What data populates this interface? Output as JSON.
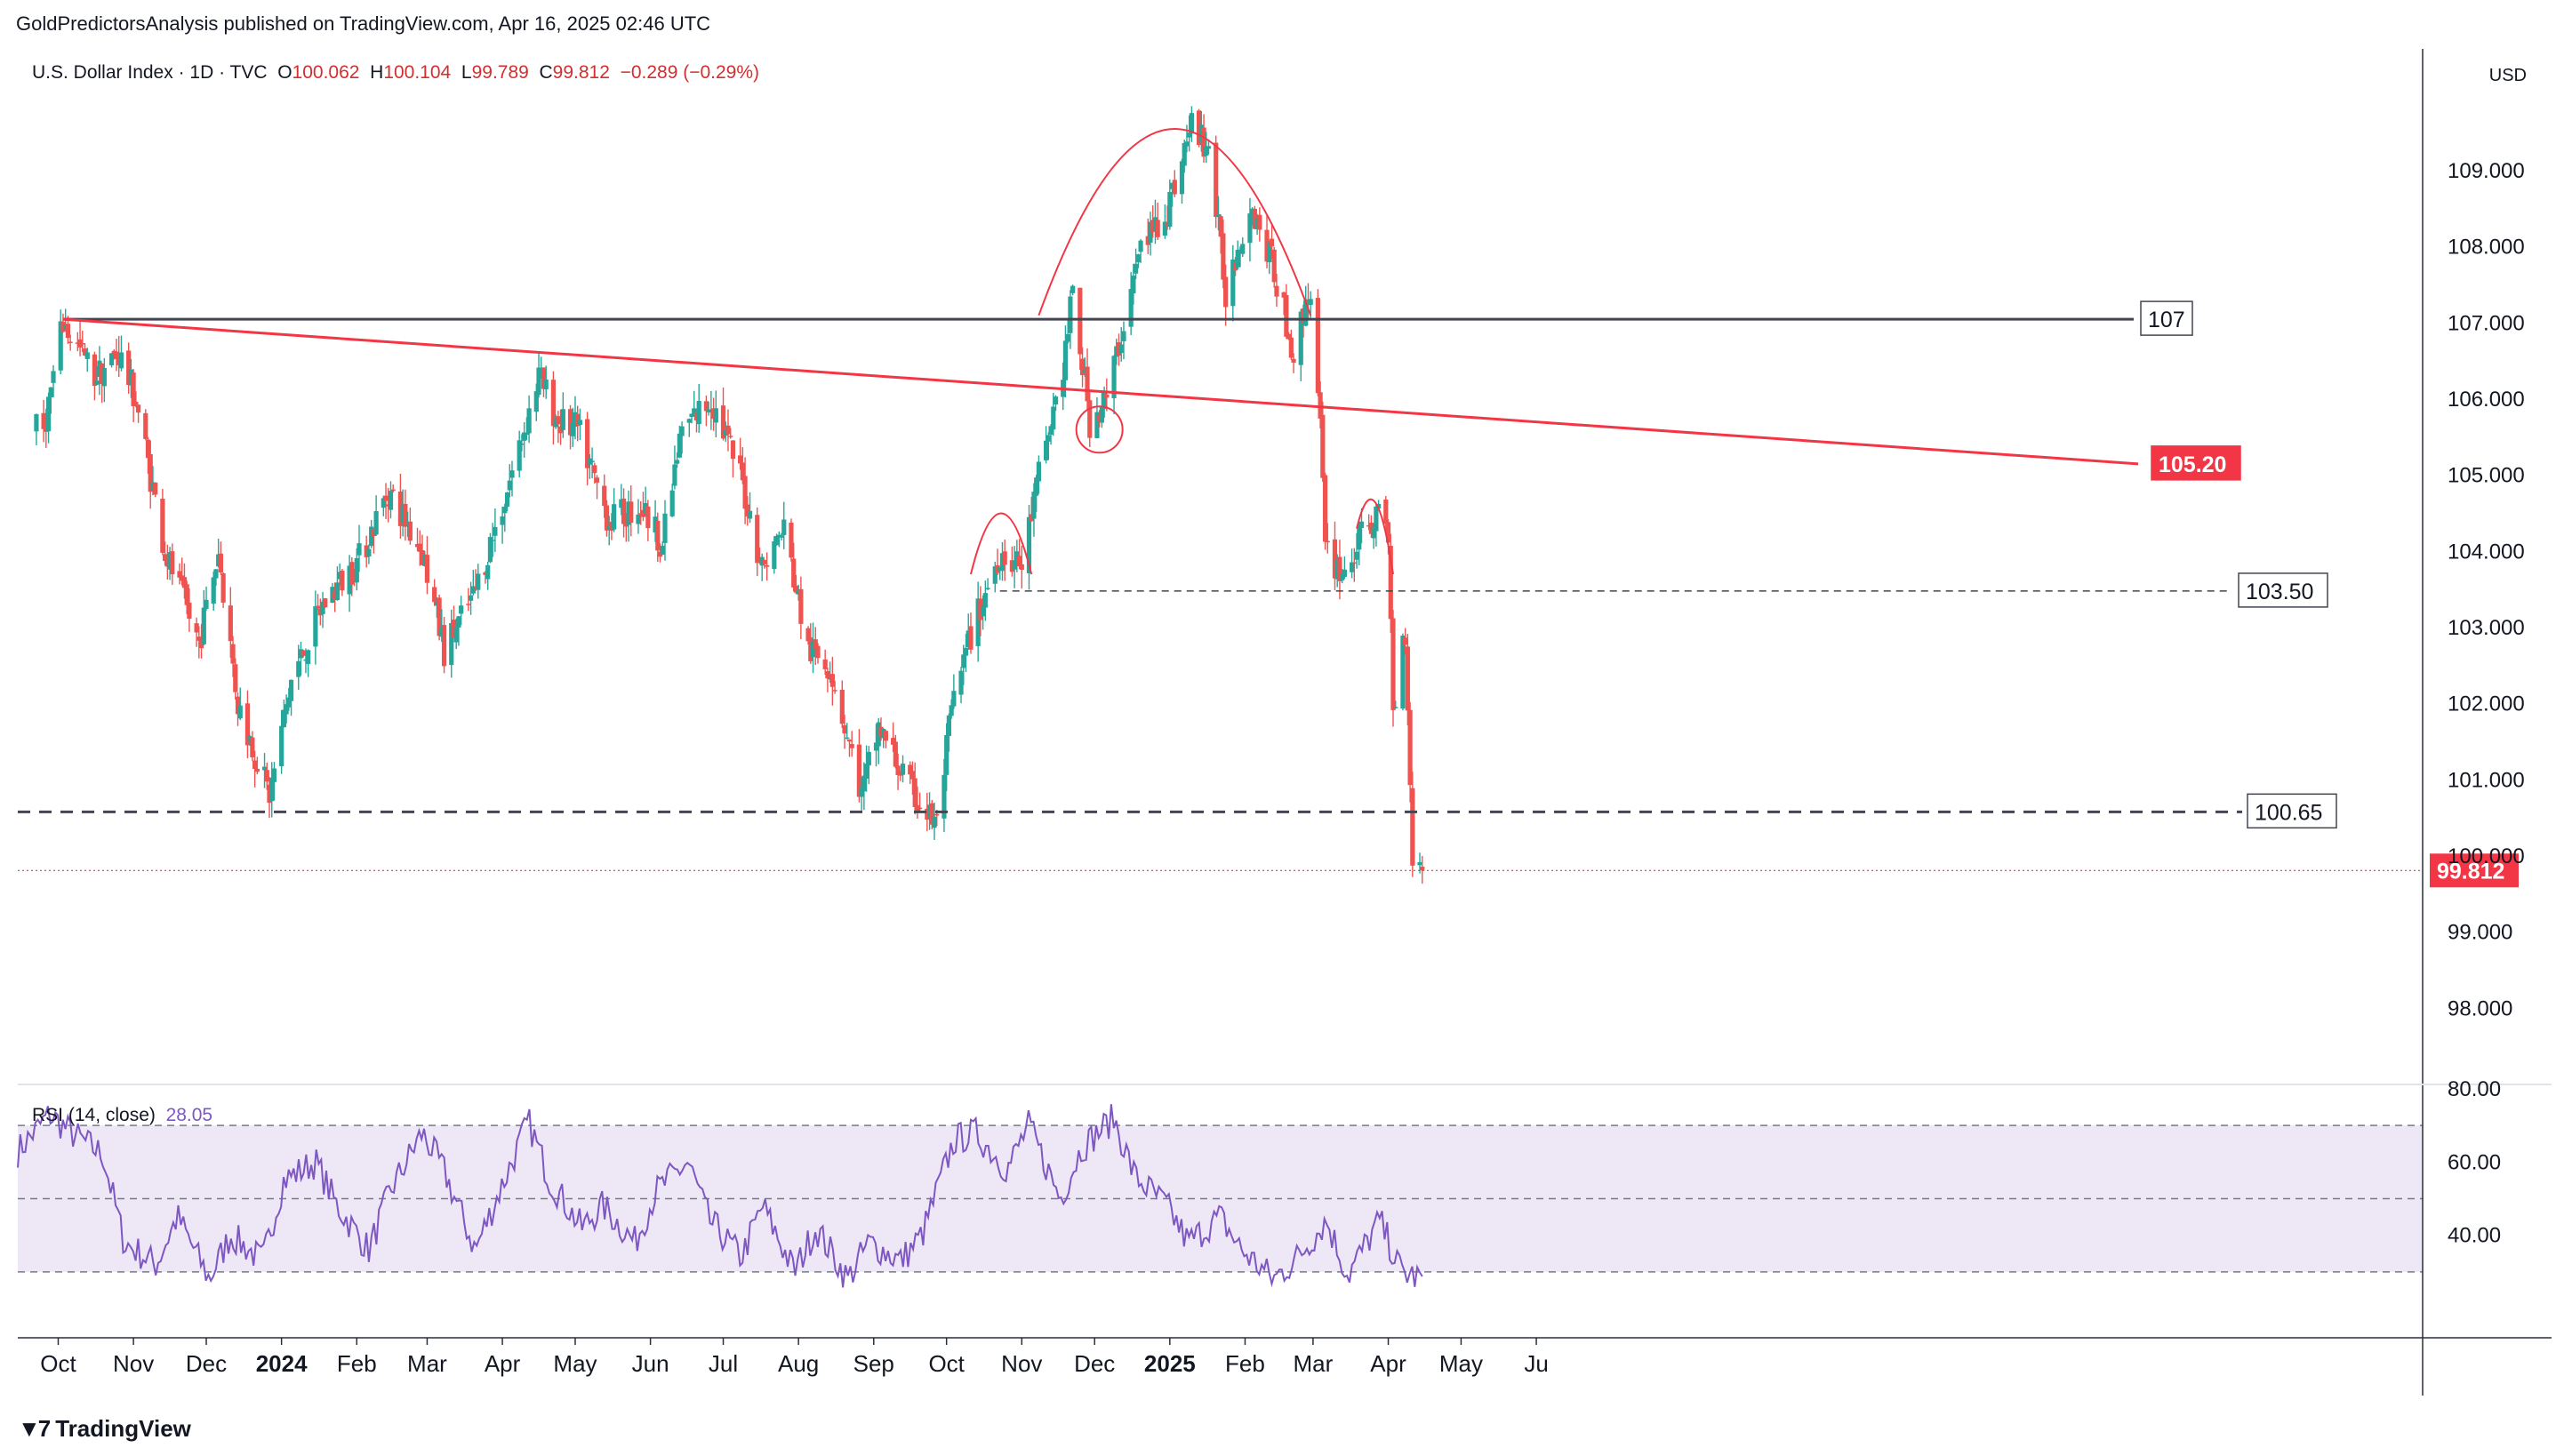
{
  "header": {
    "published": "GoldPredictorsAnalysis published on TradingView.com, Apr 16, 2025 02:46 UTC"
  },
  "symbol": {
    "title": "U.S. Dollar Index · 1D · TVC",
    "open_label": "O",
    "open": "100.062",
    "high_label": "H",
    "high": "100.104",
    "low_label": "L",
    "low": "99.789",
    "close_label": "C",
    "close": "99.812",
    "change": "−0.289 (−0.29%)"
  },
  "currency": "USD",
  "rsi": {
    "label": "RSI (14, close)",
    "value": "28.05"
  },
  "brand": "TradingView",
  "colors": {
    "up": "#26a69a",
    "down": "#ef5350",
    "trend": "#f23645",
    "level": "#434651",
    "rsi": "#7e57c2",
    "rsi_band": "#ede7f6"
  },
  "chart_data": [
    {
      "type": "candlestick",
      "x_labels": [
        "Oct",
        "Nov",
        "Dec",
        "2024",
        "Feb",
        "Mar",
        "Apr",
        "May",
        "Jun",
        "Jul",
        "Aug",
        "Sep",
        "Oct",
        "Nov",
        "Dec",
        "2025",
        "Feb",
        "Mar",
        "Apr",
        "May",
        "Ju"
      ],
      "y_ticks": [
        "109.000",
        "108.000",
        "107.000",
        "106.000",
        "105.000",
        "104.000",
        "103.000",
        "102.000",
        "101.000",
        "100.000",
        "99.000",
        "98.000"
      ],
      "y_range": [
        97.0,
        110.6
      ],
      "close_path": [
        [
          "2023-09-25",
          105.6
        ],
        [
          "2023-10-03",
          107.0
        ],
        [
          "2023-10-16",
          106.3
        ],
        [
          "2023-10-26",
          106.6
        ],
        [
          "2023-11-02",
          106.0
        ],
        [
          "2023-11-14",
          104.0
        ],
        [
          "2023-11-28",
          102.8
        ],
        [
          "2023-12-06",
          104.0
        ],
        [
          "2023-12-14",
          102.0
        ],
        [
          "2023-12-27",
          100.8
        ],
        [
          "2024-01-05",
          102.3
        ],
        [
          "2024-01-18",
          103.3
        ],
        [
          "2024-02-02",
          103.9
        ],
        [
          "2024-02-14",
          104.8
        ],
        [
          "2024-02-28",
          104.0
        ],
        [
          "2024-03-08",
          102.7
        ],
        [
          "2024-03-20",
          103.4
        ],
        [
          "2024-04-02",
          104.7
        ],
        [
          "2024-04-16",
          106.3
        ],
        [
          "2024-04-24",
          105.7
        ],
        [
          "2024-05-02",
          105.6
        ],
        [
          "2024-05-15",
          104.4
        ],
        [
          "2024-05-28",
          104.6
        ],
        [
          "2024-06-06",
          104.1
        ],
        [
          "2024-06-14",
          105.6
        ],
        [
          "2024-06-26",
          106.0
        ],
        [
          "2024-07-08",
          105.0
        ],
        [
          "2024-07-17",
          103.8
        ],
        [
          "2024-07-26",
          104.3
        ],
        [
          "2024-08-05",
          102.7
        ],
        [
          "2024-08-14",
          102.5
        ],
        [
          "2024-08-27",
          100.8
        ],
        [
          "2024-09-03",
          101.7
        ],
        [
          "2024-09-17",
          100.8
        ],
        [
          "2024-09-27",
          100.4
        ],
        [
          "2024-10-03",
          101.9
        ],
        [
          "2024-10-11",
          102.9
        ],
        [
          "2024-10-23",
          104.0
        ],
        [
          "2024-11-01",
          103.8
        ],
        [
          "2024-11-08",
          105.0
        ],
        [
          "2024-11-18",
          106.4
        ],
        [
          "2024-11-22",
          107.4
        ],
        [
          "2024-11-29",
          105.7
        ],
        [
          "2024-12-06",
          106.0
        ],
        [
          "2024-12-13",
          107.0
        ],
        [
          "2024-12-20",
          108.0
        ],
        [
          "2024-12-31",
          108.5
        ],
        [
          "2025-01-10",
          109.6
        ],
        [
          "2025-01-17",
          109.3
        ],
        [
          "2025-01-24",
          107.4
        ],
        [
          "2025-02-03",
          108.6
        ],
        [
          "2025-02-12",
          107.8
        ],
        [
          "2025-02-21",
          106.6
        ],
        [
          "2025-02-28",
          107.5
        ],
        [
          "2025-03-04",
          105.6
        ],
        [
          "2025-03-06",
          104.0
        ],
        [
          "2025-03-14",
          103.7
        ],
        [
          "2025-03-21",
          104.2
        ],
        [
          "2025-03-27",
          104.5
        ],
        [
          "2025-04-01",
          104.2
        ],
        [
          "2025-04-03",
          101.9
        ],
        [
          "2025-04-08",
          103.0
        ],
        [
          "2025-04-11",
          100.0
        ],
        [
          "2025-04-15",
          99.81
        ]
      ]
    },
    {
      "type": "line",
      "name": "RSI (14, close)",
      "y_ticks": [
        "80.00",
        "60.00",
        "40.00"
      ],
      "y_range": [
        20,
        80
      ],
      "bands": [
        30,
        50,
        70
      ],
      "values": [
        [
          0.0,
          63
        ],
        [
          0.03,
          73
        ],
        [
          0.05,
          68
        ],
        [
          0.08,
          62
        ],
        [
          0.1,
          38
        ],
        [
          0.13,
          32
        ],
        [
          0.15,
          45
        ],
        [
          0.18,
          28
        ],
        [
          0.2,
          40
        ],
        [
          0.23,
          33
        ],
        [
          0.25,
          55
        ],
        [
          0.28,
          60
        ],
        [
          0.3,
          48
        ],
        [
          0.33,
          36
        ],
        [
          0.35,
          52
        ],
        [
          0.38,
          68
        ],
        [
          0.4,
          58
        ],
        [
          0.43,
          36
        ],
        [
          0.45,
          50
        ],
        [
          0.48,
          71
        ],
        [
          0.5,
          55
        ],
        [
          0.53,
          42
        ],
        [
          0.55,
          48
        ],
        [
          0.58,
          38
        ],
        [
          0.6,
          52
        ],
        [
          0.63,
          60
        ],
        [
          0.65,
          44
        ],
        [
          0.68,
          34
        ],
        [
          0.7,
          48
        ],
        [
          0.73,
          30
        ],
        [
          0.75,
          42
        ],
        [
          0.78,
          28
        ],
        [
          0.8,
          38
        ],
        [
          0.83,
          33
        ],
        [
          0.85,
          40
        ],
        [
          0.88,
          66
        ],
        [
          0.9,
          68
        ],
        [
          0.93,
          58
        ],
        [
          0.95,
          70
        ],
        [
          0.98,
          50
        ],
        [
          1.0,
          64
        ],
        [
          1.03,
          72
        ],
        [
          1.05,
          56
        ],
        [
          1.08,
          48
        ],
        [
          1.1,
          38
        ],
        [
          1.13,
          45
        ],
        [
          1.15,
          36
        ],
        [
          1.18,
          28
        ],
        [
          1.2,
          33
        ],
        [
          1.23,
          44
        ],
        [
          1.25,
          29
        ],
        [
          1.28,
          44
        ],
        [
          1.3,
          30
        ],
        [
          1.32,
          28
        ]
      ]
    }
  ],
  "annotations": {
    "level_107": "107",
    "trend_label": "105.20",
    "level_103": "103.50",
    "level_100": "100.65",
    "last_price": "99.812"
  }
}
